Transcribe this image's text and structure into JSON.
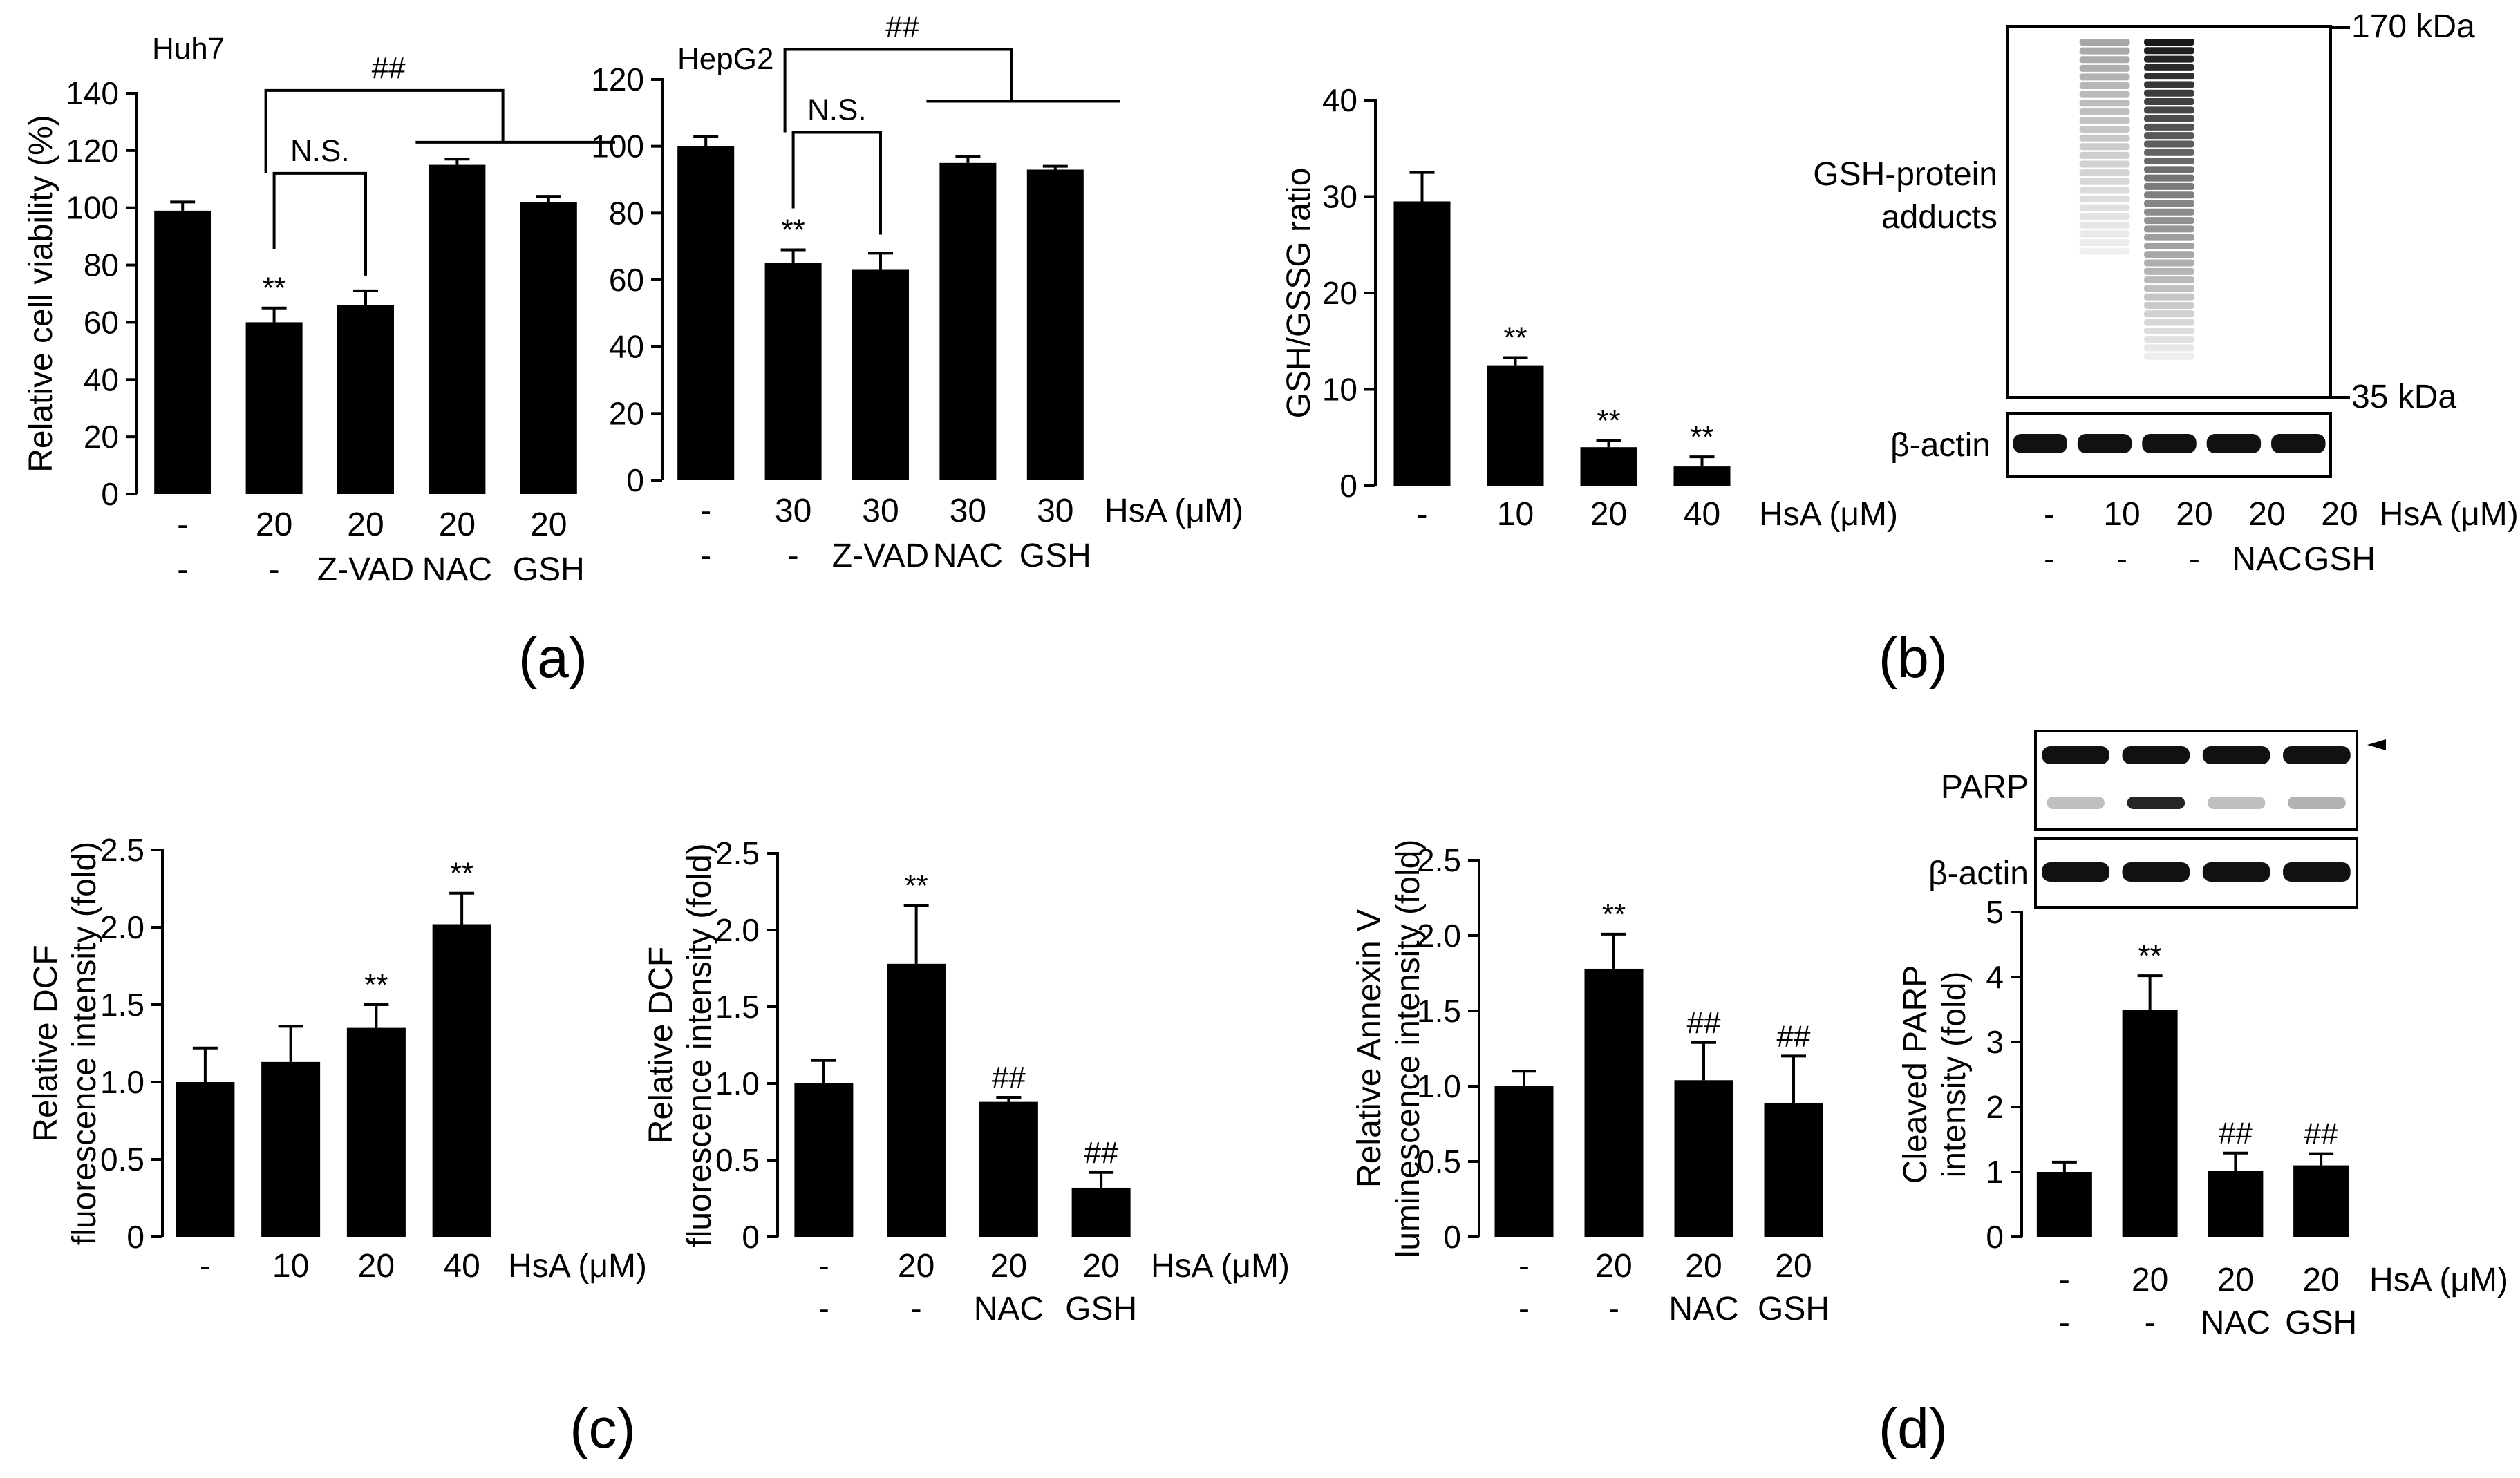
{
  "colors": {
    "bar": "#000000",
    "background": "#ffffff",
    "blot_bg": "#ffffff"
  },
  "panel_labels": [
    "(a)",
    "(b)",
    "(c)",
    "(d)"
  ],
  "chart_data": [
    {
      "id": "a1",
      "type": "bar",
      "panel": "a",
      "title": "Huh7",
      "ylabel": "Relative cell viability (%)",
      "ylim": [
        0,
        140
      ],
      "yticks": [
        "0",
        "20",
        "40",
        "60",
        "80",
        "100",
        "120",
        "140"
      ],
      "row1": [
        "-",
        "20",
        "20",
        "20",
        "20"
      ],
      "row2": [
        "-",
        "-",
        "Z-VAD",
        "NAC",
        "GSH"
      ],
      "unit": "",
      "values": [
        99,
        60,
        66,
        115,
        102
      ],
      "errors": [
        3,
        5,
        5,
        2,
        2
      ],
      "sig_labels": [
        "",
        "**",
        "",
        "",
        ""
      ],
      "brackets": [
        {
          "label": "N.S."
        },
        {
          "label": "##"
        }
      ]
    },
    {
      "id": "a2",
      "type": "bar",
      "panel": "a",
      "title": "HepG2",
      "ylabel": "",
      "ylim": [
        0,
        120
      ],
      "yticks": [
        "0",
        "20",
        "40",
        "60",
        "80",
        "100",
        "120"
      ],
      "row1": [
        "-",
        "30",
        "30",
        "30",
        "30"
      ],
      "row2": [
        "-",
        "-",
        "Z-VAD",
        "NAC",
        "GSH"
      ],
      "unit": "HsA (μM)",
      "values": [
        100,
        65,
        63,
        95,
        93
      ],
      "errors": [
        3,
        4,
        5,
        2,
        1
      ],
      "sig_labels": [
        "",
        "**",
        "",
        "",
        ""
      ],
      "brackets": [
        {
          "label": "N.S."
        },
        {
          "label": "##"
        }
      ]
    },
    {
      "id": "b1",
      "type": "bar",
      "panel": "b",
      "title": "",
      "ylabel": "GSH/GSSG ratio",
      "ylim": [
        0,
        40
      ],
      "yticks": [
        "0",
        "10",
        "20",
        "30",
        "40"
      ],
      "row1": [
        "-",
        "10",
        "20",
        "40"
      ],
      "row2": [],
      "unit": "HsA (μM)",
      "values": [
        29.5,
        12.5,
        4,
        2
      ],
      "errors": [
        3,
        0.8,
        0.7,
        1
      ],
      "sig_labels": [
        "",
        "**",
        "**",
        "**"
      ]
    },
    {
      "id": "c1",
      "type": "bar",
      "panel": "c",
      "title": "",
      "ylabel": "Relative DCF|fluorescence intensity (fold)",
      "ylim": [
        0,
        2.5
      ],
      "yticks": [
        "0",
        "0.5",
        "1.0",
        "1.5",
        "2.0",
        "2.5"
      ],
      "row1": [
        "-",
        "10",
        "20",
        "40"
      ],
      "row2": [],
      "unit": "HsA (μM)",
      "values": [
        1.0,
        1.13,
        1.35,
        2.02
      ],
      "errors": [
        0.22,
        0.23,
        0.15,
        0.2
      ],
      "sig_labels": [
        "",
        "",
        "**",
        "**"
      ]
    },
    {
      "id": "c2",
      "type": "bar",
      "panel": "c",
      "title": "",
      "ylabel": "Relative DCF|fluorescence intensity (fold)",
      "ylim": [
        0,
        2.5
      ],
      "yticks": [
        "0",
        "0.5",
        "1.0",
        "1.5",
        "2.0",
        "2.5"
      ],
      "row1": [
        "-",
        "20",
        "20",
        "20"
      ],
      "row2": [
        "-",
        "-",
        "NAC",
        "GSH"
      ],
      "unit": "HsA (μM)",
      "values": [
        1.0,
        1.78,
        0.88,
        0.32
      ],
      "errors": [
        0.15,
        0.38,
        0.03,
        0.1
      ],
      "sig_labels": [
        "",
        "**",
        "##",
        "##"
      ]
    },
    {
      "id": "c3",
      "type": "bar",
      "panel": "c",
      "title": "",
      "ylabel": "Relative Annexin V|luminescence intensity (fold)",
      "ylim": [
        0,
        2.5
      ],
      "yticks": [
        "0",
        "0.5",
        "1.0",
        "1.5",
        "2.0",
        "2.5"
      ],
      "row1": [
        "-",
        "20",
        "20",
        "20"
      ],
      "row2": [
        "-",
        "-",
        "NAC",
        "GSH"
      ],
      "unit": "",
      "values": [
        1.0,
        1.78,
        1.04,
        0.89
      ],
      "errors": [
        0.1,
        0.23,
        0.25,
        0.31
      ],
      "sig_labels": [
        "",
        "**",
        "##",
        "##"
      ]
    },
    {
      "id": "d1",
      "type": "bar",
      "panel": "d",
      "title": "",
      "ylabel": "Cleaved PARP|intensity (fold)",
      "ylim": [
        0,
        5
      ],
      "yticks": [
        "0",
        "1",
        "2",
        "3",
        "4",
        "5"
      ],
      "row1": [
        "-",
        "20",
        "20",
        "20"
      ],
      "row2": [
        "-",
        "-",
        "NAC",
        "GSH"
      ],
      "unit": "HsA (μM)",
      "values": [
        1.0,
        3.5,
        1.02,
        1.1
      ],
      "errors": [
        0.15,
        0.52,
        0.27,
        0.18
      ],
      "sig_labels": [
        "",
        "**",
        "##",
        "##"
      ]
    }
  ],
  "blots": {
    "b": {
      "main_label": "GSH-protein|adducts",
      "loading_label": "β-actin",
      "marker_top": "170 kDa",
      "marker_bottom": "35 kDa",
      "lanes_row1": [
        "-",
        "10",
        "20",
        "20",
        "20"
      ],
      "lanes_row2": [
        "-",
        "-",
        "-",
        "NAC",
        "GSH"
      ],
      "unit": "HsA (μM)",
      "adduct_intensity": [
        0,
        0.35,
        1.0,
        0,
        0
      ]
    },
    "d": {
      "main_label": "PARP",
      "loading_label": "β-actin",
      "cleaved_intensity": [
        0.25,
        0.85,
        0.25,
        0.3
      ]
    }
  }
}
